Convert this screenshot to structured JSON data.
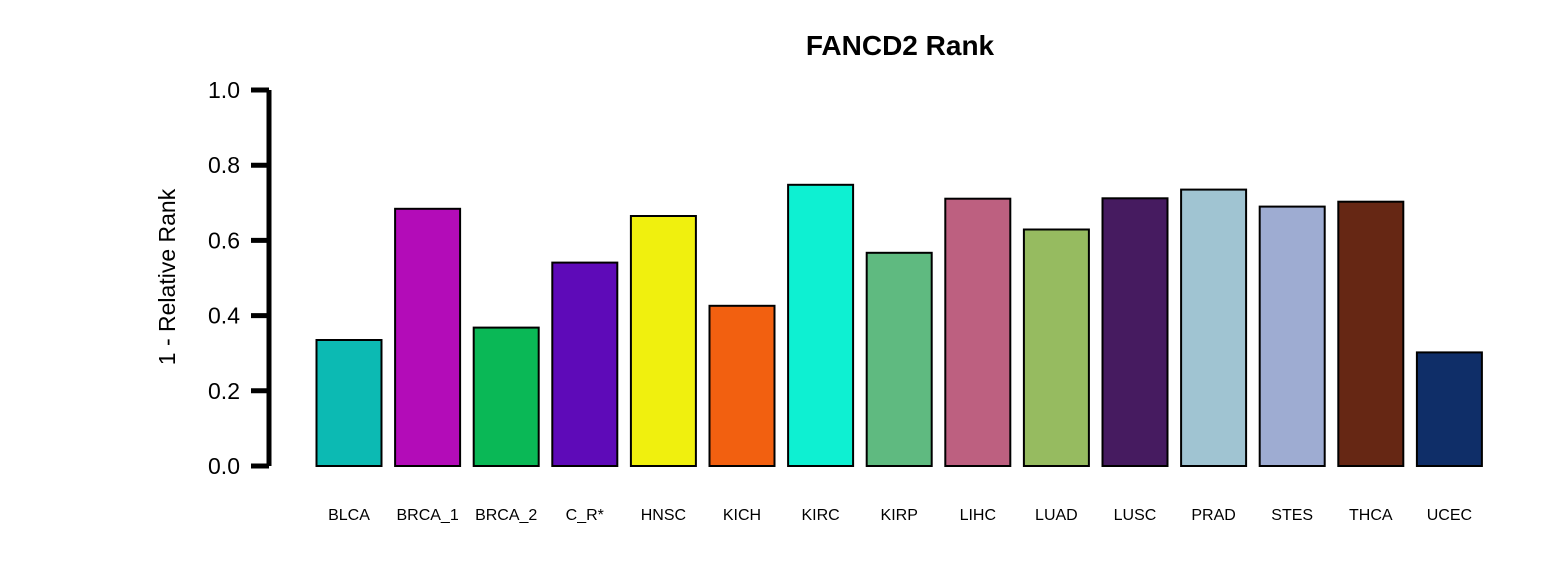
{
  "chart_data": {
    "type": "bar",
    "title": "FANCD2 Rank",
    "xlabel": "",
    "ylabel": "1 - Relative Rank",
    "ylim": [
      0,
      1
    ],
    "yticks": [
      "0.0",
      "0.2",
      "0.4",
      "0.6",
      "0.8",
      "1.0"
    ],
    "categories": [
      "BLCA",
      "BRCA_1",
      "BRCA_2",
      "C_R*",
      "HNSC",
      "KICH",
      "KIRC",
      "KIRP",
      "LIHC",
      "LUAD",
      "LUSC",
      "PRAD",
      "STES",
      "THCA",
      "UCEC"
    ],
    "values": [
      0.335,
      0.684,
      0.368,
      0.541,
      0.665,
      0.426,
      0.748,
      0.567,
      0.711,
      0.629,
      0.712,
      0.735,
      0.69,
      0.703,
      0.302
    ],
    "colors": [
      "#0cbab3",
      "#b30cb8",
      "#0ab856",
      "#5e0ab8",
      "#f0f00e",
      "#f26010",
      "#0ef0d2",
      "#5fba80",
      "#bd6080",
      "#96bb60",
      "#461b60",
      "#a0c4d2",
      "#9eacd2",
      "#662714",
      "#0f2e68"
    ],
    "grid": false,
    "legend": "none"
  }
}
